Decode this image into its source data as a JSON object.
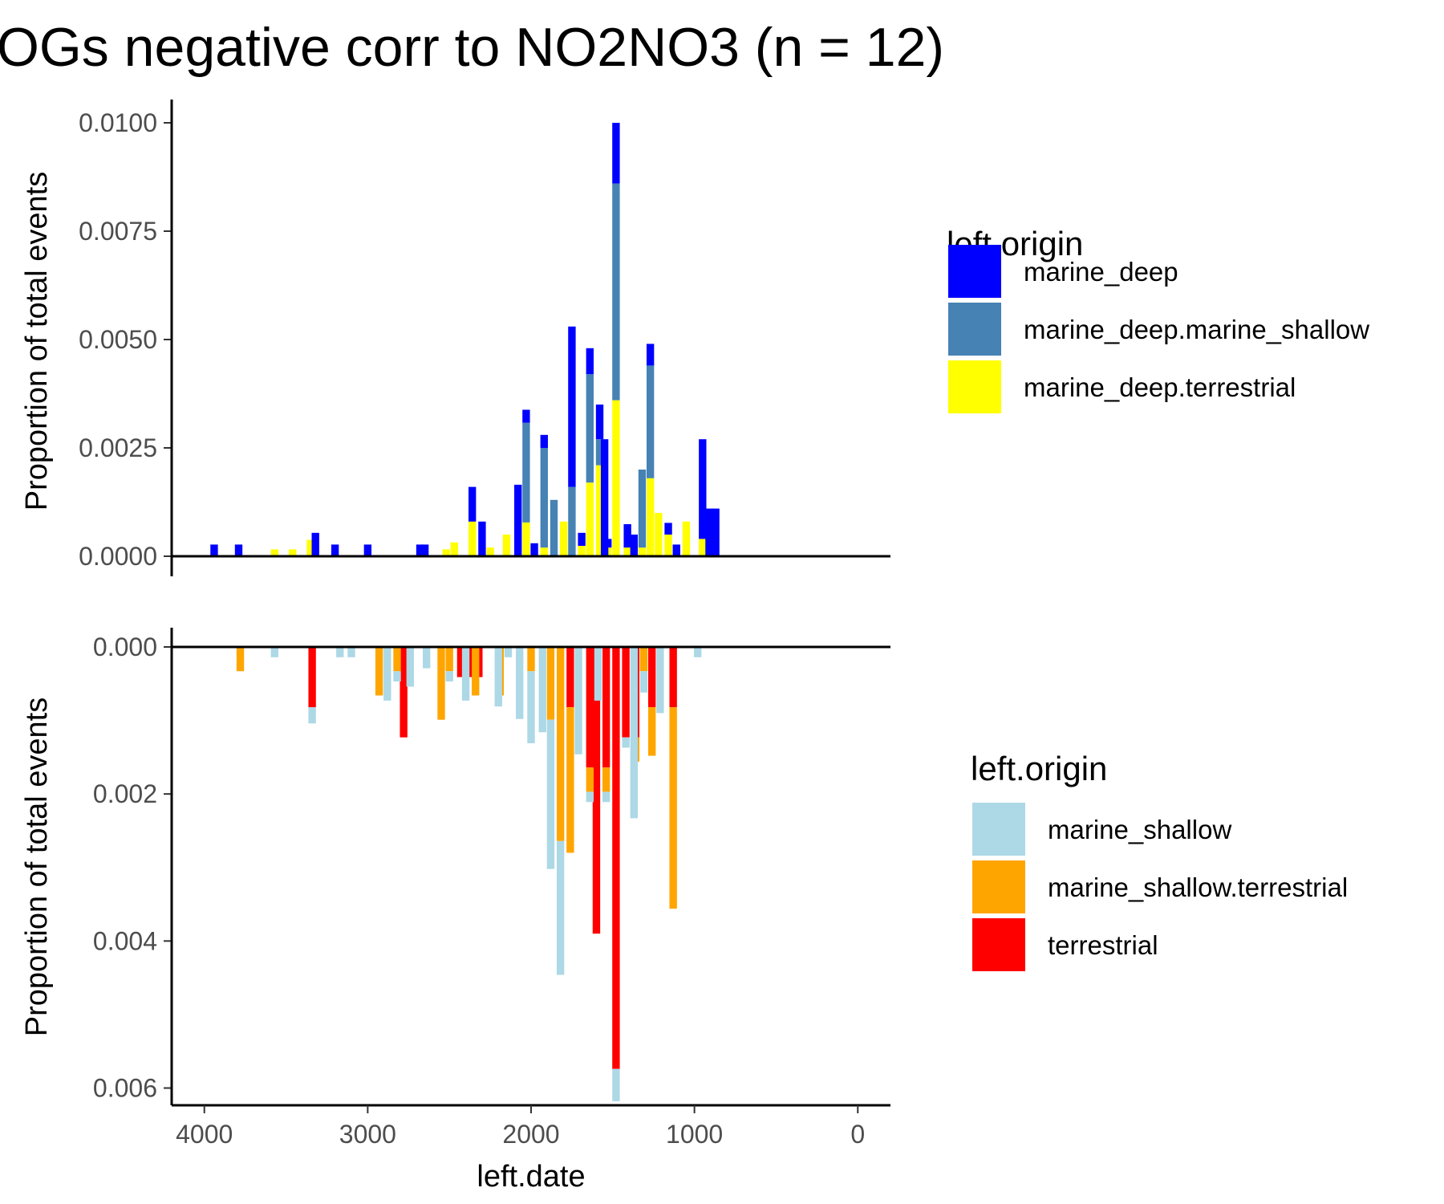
{
  "chart_data": {
    "type": "bar",
    "title": "OGs negative corr to NO2NO3 (n = 12)",
    "xlabel": "left.date",
    "xlim": [
      4200,
      -200
    ],
    "x_ticks": [
      4000,
      3000,
      2000,
      1000,
      0
    ],
    "x_reversed": true,
    "bin_width": 46,
    "panels": [
      {
        "id": "top",
        "ylabel": "Proportion of total events",
        "ylim": [
          0,
          0.01
        ],
        "y_ticks": [
          "0.0000",
          "0.0025",
          "0.0050",
          "0.0075",
          "0.0100"
        ],
        "direction": "up",
        "legend_title": "left.origin",
        "series": [
          {
            "name": "marine_deep.terrestrial",
            "color": "#FFFF00",
            "points": [
              [
                3570,
                0.00016
              ],
              [
                3460,
                0.00016
              ],
              [
                3350,
                0.00038
              ],
              [
                2520,
                0.00016
              ],
              [
                2470,
                0.00032
              ],
              [
                2360,
                0.0008
              ],
              [
                2250,
                0.0002
              ],
              [
                2150,
                0.0005
              ],
              [
                2030,
                0.00078
              ],
              [
                1920,
                0.0002
              ],
              [
                1800,
                0.0008
              ],
              [
                1690,
                0.00024
              ],
              [
                1640,
                0.0017
              ],
              [
                1580,
                0.0021
              ],
              [
                1530,
                0.0002
              ],
              [
                1480,
                0.0036
              ],
              [
                1410,
                0.0002
              ],
              [
                1320,
                0.0002
              ],
              [
                1270,
                0.0018
              ],
              [
                1220,
                0.001
              ],
              [
                1160,
                0.0005
              ],
              [
                1050,
                0.0008
              ],
              [
                950,
                0.0004
              ]
            ]
          },
          {
            "name": "marine_deep.marine_shallow",
            "color": "#4682B4",
            "points": [
              [
                2030,
                0.0023
              ],
              [
                1920,
                0.0023
              ],
              [
                1860,
                0.0013
              ],
              [
                1750,
                0.0016
              ],
              [
                1640,
                0.0025
              ],
              [
                1580,
                0.0006
              ],
              [
                1480,
                0.005
              ],
              [
                1320,
                0.0018
              ],
              [
                1270,
                0.0026
              ]
            ]
          },
          {
            "name": "marine_deep",
            "color": "#0000FF",
            "points": [
              [
                3940,
                0.00027
              ],
              [
                3790,
                0.00027
              ],
              [
                3320,
                0.00054
              ],
              [
                3200,
                0.00027
              ],
              [
                3000,
                0.00027
              ],
              [
                2680,
                0.00027
              ],
              [
                2650,
                0.00027
              ],
              [
                2360,
                0.0008
              ],
              [
                2300,
                0.0008
              ],
              [
                2080,
                0.00165
              ],
              [
                2030,
                0.0003
              ],
              [
                1980,
                0.0003
              ],
              [
                1920,
                0.0003
              ],
              [
                1750,
                0.0037
              ],
              [
                1690,
                0.0003
              ],
              [
                1640,
                0.0006
              ],
              [
                1580,
                0.0008
              ],
              [
                1550,
                0.0027
              ],
              [
                1530,
                0.0002
              ],
              [
                1480,
                0.0014
              ],
              [
                1410,
                0.00054
              ],
              [
                1370,
                0.0005
              ],
              [
                1270,
                0.0005
              ],
              [
                1160,
                0.00027
              ],
              [
                1110,
                0.00027
              ],
              [
                950,
                0.0023
              ],
              [
                910,
                0.0011
              ],
              [
                870,
                0.0011
              ]
            ]
          }
        ]
      },
      {
        "id": "bottom",
        "ylabel": "Proportion of total events",
        "ylim": [
          0,
          0.0063
        ],
        "y_ticks": [
          "0.000",
          "0.002",
          "0.004",
          "0.006"
        ],
        "direction": "down",
        "legend_title": "left.origin",
        "series": [
          {
            "name": "terrestrial",
            "color": "#FF0000",
            "points": [
              [
                3340,
                0.00082
              ],
              [
                2780,
                0.00123
              ],
              [
                2430,
                0.00041
              ],
              [
                2370,
                0.00041
              ],
              [
                2320,
                0.00041
              ],
              [
                1760,
                0.00082
              ],
              [
                1640,
                0.00164
              ],
              [
                1600,
                0.0039
              ],
              [
                1540,
                0.00164
              ],
              [
                1480,
                0.00574
              ],
              [
                1420,
                0.00123
              ],
              [
                1360,
                0.00123
              ],
              [
                1260,
                0.00082
              ],
              [
                1130,
                0.00082
              ]
            ]
          },
          {
            "name": "marine_shallow.terrestrial",
            "color": "#FFA500",
            "points": [
              [
                3780,
                0.00033
              ],
              [
                2930,
                0.00066
              ],
              [
                2820,
                0.00033
              ],
              [
                2550,
                0.00099
              ],
              [
                2500,
                0.00033
              ],
              [
                2340,
                0.00066
              ],
              [
                2190,
                0.00066
              ],
              [
                2000,
                0.00033
              ],
              [
                1880,
                0.00099
              ],
              [
                1820,
                0.00264
              ],
              [
                1760,
                0.00198
              ],
              [
                1640,
                0.00033
              ],
              [
                1540,
                0.00033
              ],
              [
                1360,
                0.00033
              ],
              [
                1310,
                0.00033
              ],
              [
                1260,
                0.00066
              ],
              [
                1130,
                0.00274
              ]
            ]
          },
          {
            "name": "marine_shallow",
            "color": "#ADD8E6",
            "points": [
              [
                3570,
                0.00014
              ],
              [
                3340,
                0.00022
              ],
              [
                3170,
                0.00014
              ],
              [
                3100,
                0.00014
              ],
              [
                2880,
                0.00073
              ],
              [
                2820,
                0.00014
              ],
              [
                2740,
                0.00054
              ],
              [
                2640,
                0.00029
              ],
              [
                2500,
                0.00014
              ],
              [
                2400,
                0.00073
              ],
              [
                2200,
                0.00081
              ],
              [
                2140,
                0.00014
              ],
              [
                2070,
                0.00098
              ],
              [
                2000,
                0.00098
              ],
              [
                1930,
                0.00116
              ],
              [
                1880,
                0.00203
              ],
              [
                1820,
                0.00182
              ],
              [
                1710,
                0.00146
              ],
              [
                1640,
                0.00014
              ],
              [
                1590,
                0.00073
              ],
              [
                1540,
                0.00014
              ],
              [
                1480,
                0.00044
              ],
              [
                1420,
                0.00014
              ],
              [
                1370,
                0.00233
              ],
              [
                1310,
                0.00029
              ],
              [
                1210,
                0.0009
              ],
              [
                980,
                0.00014
              ]
            ]
          }
        ]
      }
    ],
    "legend_placement": "right"
  }
}
